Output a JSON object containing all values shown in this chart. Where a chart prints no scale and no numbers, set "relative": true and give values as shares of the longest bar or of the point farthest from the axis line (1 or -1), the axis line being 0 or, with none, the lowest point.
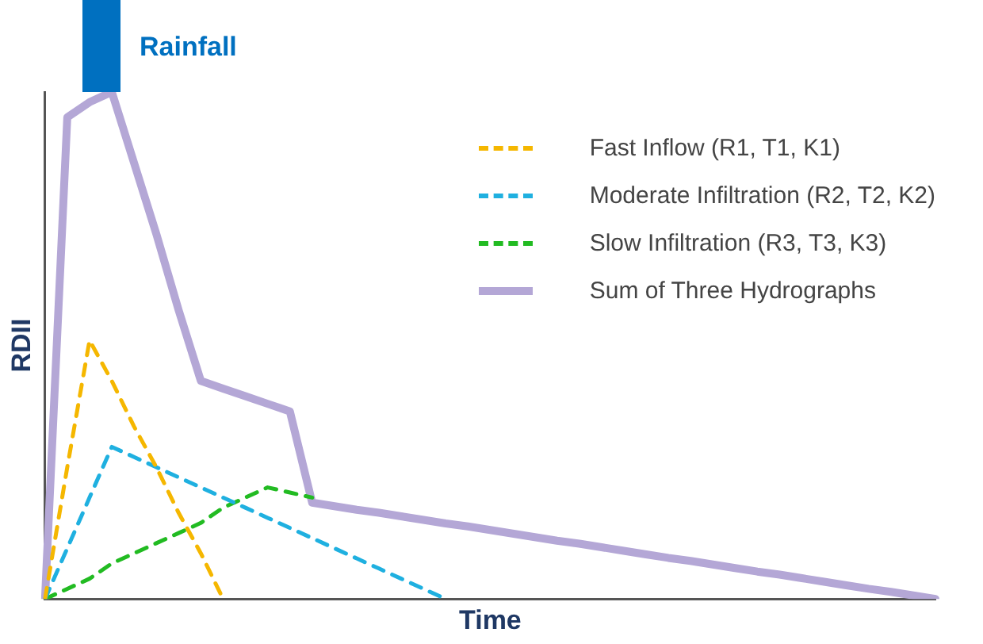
{
  "chart_data": {
    "type": "line",
    "relative": true,
    "xlabel": "Time",
    "ylabel": "RDII",
    "annotations": [
      "Rainfall"
    ],
    "tick_labels": false,
    "grid": false,
    "legend": "top right",
    "marker": "none",
    "categories": [
      null,
      null,
      null,
      null,
      null,
      null,
      null,
      null,
      null,
      null,
      null,
      null,
      null,
      null,
      null,
      null,
      null,
      null,
      null,
      null,
      null,
      null,
      null,
      null,
      null,
      null,
      null,
      null,
      null,
      null,
      null,
      null,
      null,
      null,
      null,
      null,
      null,
      null,
      null,
      null,
      null
    ],
    "series": [
      {
        "name": "Fast Inflow (R1, T1, K1)",
        "color": "#f5b700",
        "line_style": "dashed",
        "values": [
          0,
          0.26,
          0.51,
          0.43,
          0.34,
          0.26,
          0.17,
          0.09,
          0,
          null,
          null,
          null,
          null,
          null,
          null,
          null,
          null,
          null,
          null,
          null,
          null,
          null,
          null,
          null,
          null,
          null,
          null,
          null,
          null,
          null,
          null,
          null,
          null,
          null,
          null,
          null,
          null,
          null,
          null,
          null,
          null
        ]
      },
      {
        "name": "Moderate Infiltration (R2, T2, K2)",
        "color": "#1fb0e0",
        "line_style": "dashed",
        "values": [
          0,
          0.1,
          0.2,
          0.3,
          0.28,
          0.26,
          0.24,
          0.22,
          0.2,
          0.18,
          0.16,
          0.14,
          0.12,
          0.1,
          0.08,
          0.06,
          0.04,
          0.02,
          0,
          null,
          null,
          null,
          null,
          null,
          null,
          null,
          null,
          null,
          null,
          null,
          null,
          null,
          null,
          null,
          null,
          null,
          null,
          null,
          null,
          null,
          null
        ]
      },
      {
        "name": "Slow Infiltration (R3, T3, K3)",
        "color": "#22bb22",
        "line_style": "dashed",
        "values": [
          0,
          0.02,
          0.04,
          0.07,
          0.09,
          0.11,
          0.13,
          0.15,
          0.18,
          0.2,
          0.22,
          0.21,
          0.2,
          null,
          null,
          null,
          null,
          null,
          null,
          null,
          null,
          null,
          null,
          null,
          null,
          null,
          null,
          null,
          null,
          null,
          null,
          null,
          null,
          null,
          null,
          null,
          null,
          null,
          null,
          null,
          null
        ]
      },
      {
        "name": "Sum of Three Hydrographs",
        "color": "#b4a7d6",
        "line_style": "solid",
        "values": [
          0,
          0.95,
          0.98,
          1,
          0.86,
          0.72,
          0.57,
          0.43,
          0.415,
          0.4,
          0.385,
          0.37,
          0.19,
          0.183,
          0.176,
          0.17,
          0.163,
          0.156,
          0.149,
          0.143,
          0.136,
          0.129,
          0.122,
          0.115,
          0.109,
          0.102,
          0.095,
          0.088,
          0.081,
          0.075,
          0.068,
          0.061,
          0.054,
          0.048,
          0.041,
          0.034,
          0.027,
          0.02,
          0.014,
          0.007,
          0
        ]
      }
    ]
  }
}
